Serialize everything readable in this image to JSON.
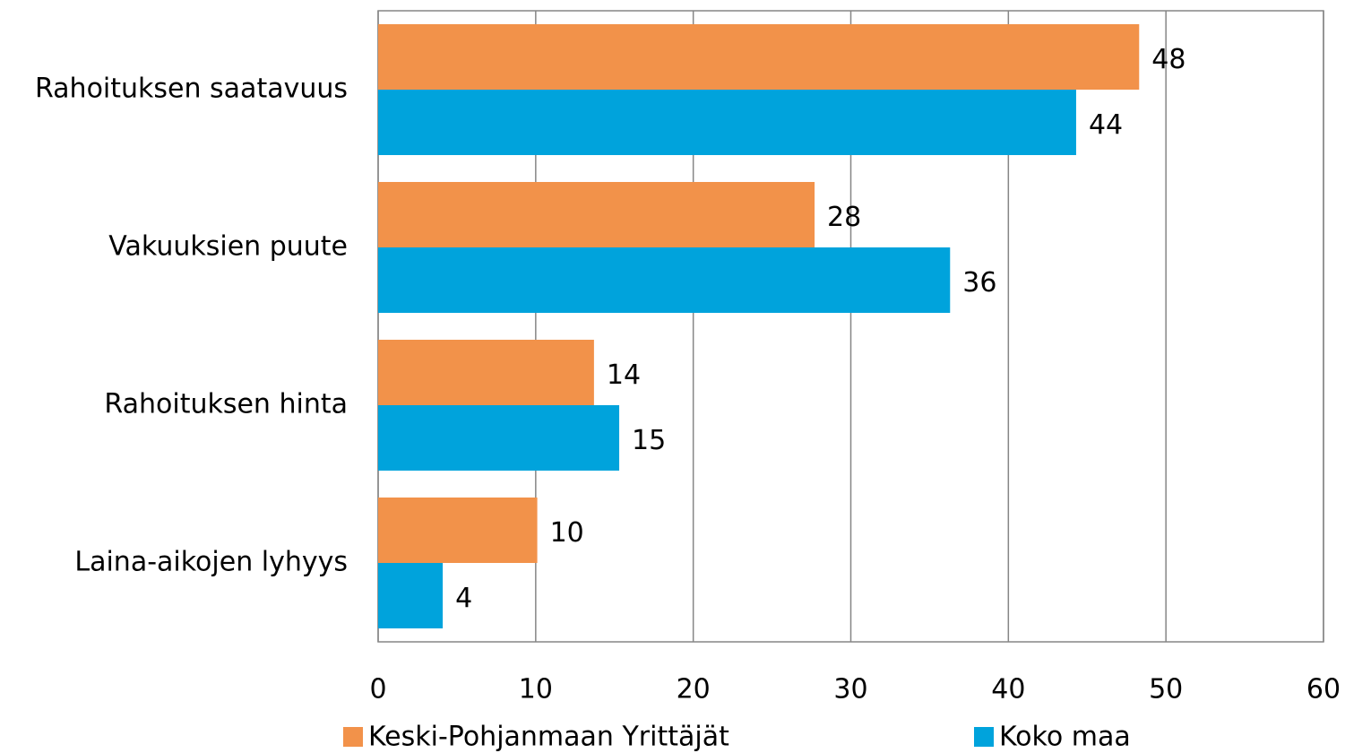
{
  "chart_data": {
    "type": "hbar",
    "categories": [
      "Rahoituksen saatavuus",
      "Vakuuksien puute",
      "Rahoituksen hinta",
      "Laina-aikojen lyhyys"
    ],
    "series": [
      {
        "name": "Keski-Pohjanmaan Yrittäjät",
        "color": "#f2924a",
        "values": [
          48.3,
          27.7,
          13.7,
          10.1
        ],
        "value_labels": [
          "48",
          "28",
          "14",
          "10"
        ]
      },
      {
        "name": "Koko maa",
        "color": "#00a3dc",
        "values": [
          44.3,
          36.3,
          15.3,
          4.1
        ],
        "value_labels": [
          "44",
          "36",
          "15",
          "4"
        ]
      }
    ],
    "xlim": [
      0,
      60
    ],
    "xticks": [
      0,
      10,
      20,
      30,
      40,
      50,
      60
    ],
    "grid": true,
    "legend": "bottom"
  }
}
